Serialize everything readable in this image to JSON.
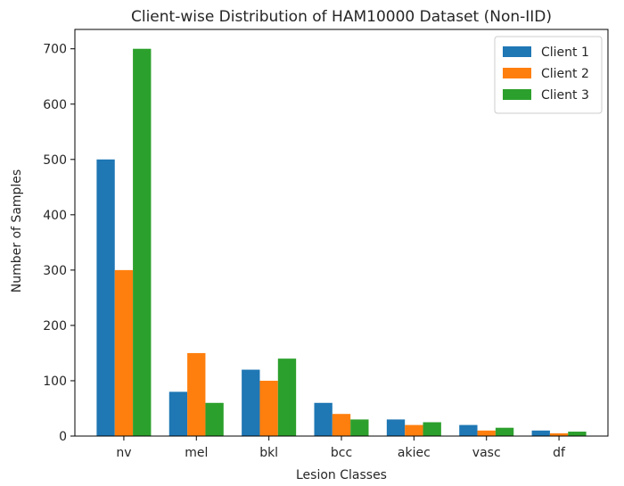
{
  "chart_data": {
    "type": "bar",
    "title": "Client-wise Distribution of HAM10000 Dataset (Non-IID)",
    "xlabel": "Lesion Classes",
    "ylabel": "Number of Samples",
    "categories": [
      "nv",
      "mel",
      "bkl",
      "bcc",
      "akiec",
      "vasc",
      "df"
    ],
    "series": [
      {
        "name": "Client 1",
        "color": "#1f77b4",
        "values": [
          500,
          80,
          120,
          60,
          30,
          20,
          10
        ]
      },
      {
        "name": "Client 2",
        "color": "#ff7f0e",
        "values": [
          300,
          150,
          100,
          40,
          20,
          10,
          5
        ]
      },
      {
        "name": "Client 3",
        "color": "#2ca02c",
        "values": [
          700,
          60,
          140,
          30,
          25,
          15,
          8
        ]
      }
    ],
    "ylim": [
      0,
      735
    ],
    "yticks": [
      0,
      100,
      200,
      300,
      400,
      500,
      600,
      700
    ],
    "grid": false,
    "legend_position": "top-right"
  }
}
